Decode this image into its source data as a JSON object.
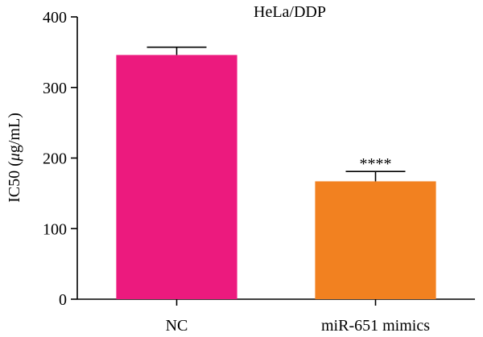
{
  "chart_data": {
    "type": "bar",
    "title": "HeLa/DDP",
    "ylabel_prefix": "IC50 (",
    "ylabel_mu": "μ",
    "ylabel_suffix": "g/mL)",
    "ylim": [
      0,
      400
    ],
    "yticks": [
      0,
      100,
      200,
      300,
      400
    ],
    "categories": [
      "NC",
      "miR-651 mimics"
    ],
    "values": [
      346,
      167
    ],
    "errors": [
      11,
      14
    ],
    "colors": [
      "#ec1a7e",
      "#f28120"
    ],
    "annotations": [
      "",
      "****"
    ],
    "grid": false
  }
}
